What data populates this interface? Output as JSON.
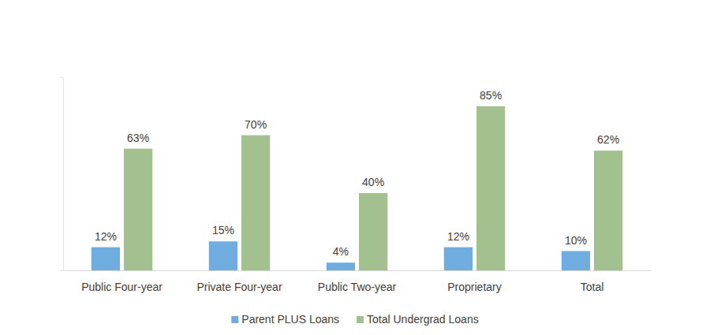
{
  "chart_data": {
    "type": "bar",
    "categories": [
      "Public Four-year",
      "Private Four-year",
      "Public Two-year",
      "Proprietary",
      "Total"
    ],
    "series": [
      {
        "name": "Parent PLUS Loans",
        "color": "#6fade0",
        "values": [
          12,
          15,
          4,
          12,
          10
        ],
        "value_labels": [
          "12%",
          "15%",
          "4%",
          "12%",
          "10%"
        ]
      },
      {
        "name": "Total Undergrad Loans",
        "color": "#a3c18f",
        "values": [
          63,
          70,
          40,
          85,
          62
        ],
        "value_labels": [
          "63%",
          "70%",
          "40%",
          "85%",
          "62%"
        ]
      }
    ],
    "ylim": [
      0,
      100
    ],
    "yticks": [
      0,
      100
    ],
    "grid": false,
    "legend": "bottom",
    "data_labels": true,
    "tick_labels": "x"
  }
}
